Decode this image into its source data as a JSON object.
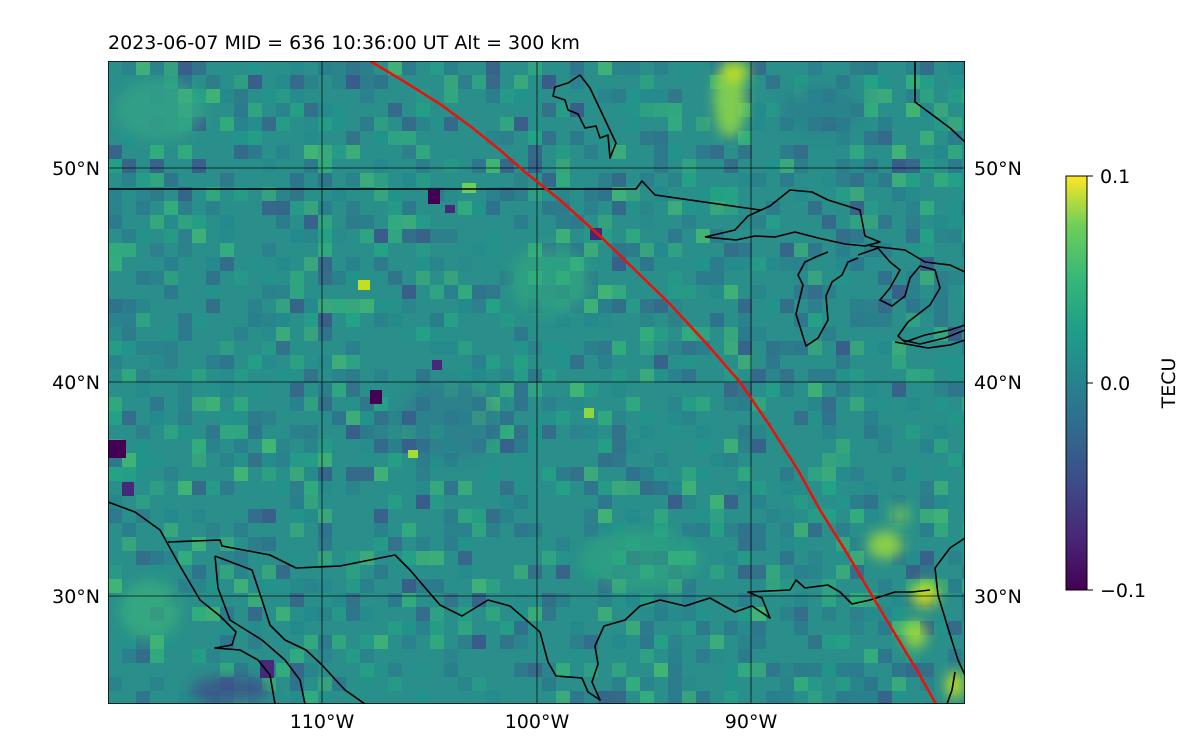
{
  "title": "2023-06-07  MID = 636    10:36:00  UT  Alt = 300 km",
  "map": {
    "lon_range": [
      -120,
      -80
    ],
    "lat_range": [
      25,
      55
    ],
    "x_ticks": [
      "110°W",
      "100°W",
      "90°W"
    ],
    "y_ticks_left": [
      "50°N",
      "40°N",
      "30°N"
    ],
    "y_ticks_right": [
      "50°N",
      "40°N",
      "30°N"
    ],
    "grid": true,
    "track_color": "#e8140c",
    "coastline_color": "#000000"
  },
  "colorbar": {
    "label": "TECU",
    "ticks": [
      "0.1",
      "0.0",
      "−0.1"
    ],
    "min": -0.1,
    "max": 0.1,
    "colormap": "viridis"
  }
}
